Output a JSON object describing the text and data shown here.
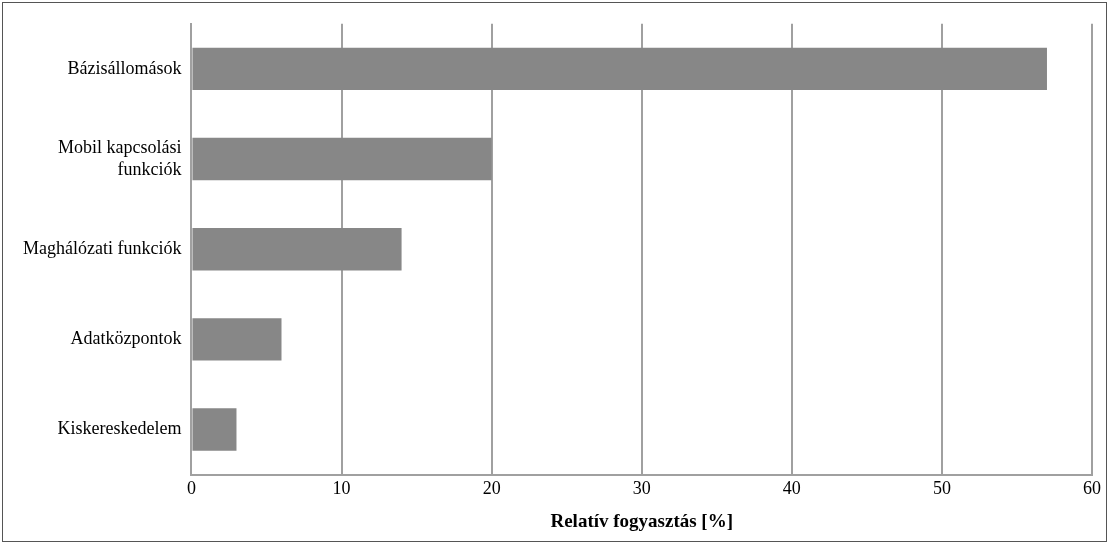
{
  "chart_data": {
    "type": "bar",
    "orientation": "horizontal",
    "categories": [
      "Bázisállomások",
      "Mobil kapcsolási funkciók",
      "Maghálózati funkciók",
      "Adatközpontok",
      "Kiskereskedelem"
    ],
    "values": [
      57,
      20,
      14,
      6,
      3
    ],
    "color": "#878787",
    "xlabel": "Relatív fogyasztás [%]",
    "xlim": [
      0,
      60
    ],
    "xticks": [
      0,
      10,
      20,
      30,
      40,
      50,
      60
    ],
    "grid": "x",
    "legend": false
  }
}
